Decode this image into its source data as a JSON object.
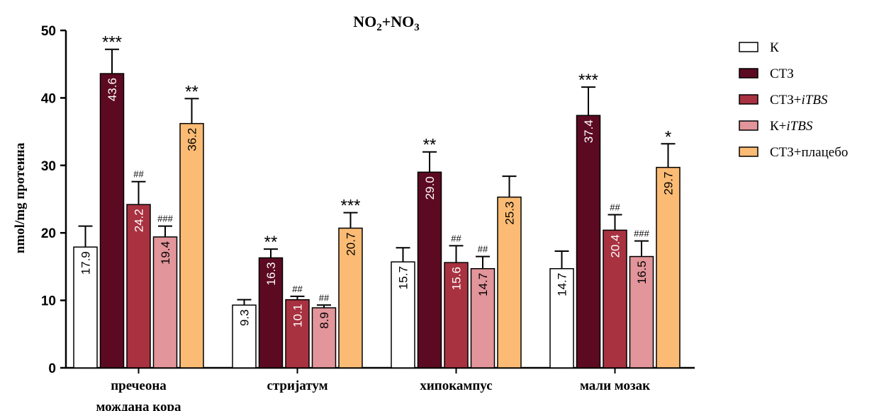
{
  "chart_data": {
    "type": "bar",
    "title_main": "NO",
    "title_sub1": "2",
    "title_mid": "+NO",
    "title_sub2": "3",
    "ylabel": "nmol/mg протеина",
    "ylim": [
      0,
      50
    ],
    "yticks": [
      0,
      10,
      20,
      30,
      40,
      50
    ],
    "categories": [
      [
        "пречеона",
        "мождана кора"
      ],
      [
        "стријатум"
      ],
      [
        "хипокампус"
      ],
      [
        "мали мозак"
      ]
    ],
    "series": [
      {
        "name_main": "К",
        "name_italic": "",
        "color": "#ffffff",
        "values": [
          17.9,
          9.3,
          15.7,
          14.7
        ],
        "errors": [
          21.0,
          10.1,
          17.8,
          17.3
        ],
        "labels": [
          "17.9",
          "9.3",
          "15.7",
          "14.7"
        ],
        "label_color": "#000000",
        "marks": [
          "",
          "",
          "",
          ""
        ]
      },
      {
        "name_main": "СТЗ",
        "name_italic": "",
        "color": "#5c0a22",
        "values": [
          43.6,
          16.3,
          29.0,
          37.4
        ],
        "errors": [
          47.2,
          17.6,
          32.0,
          41.6
        ],
        "labels": [
          "43.6",
          "16.3",
          "29.0",
          "37.4"
        ],
        "label_color": "#ffffff",
        "marks": [
          "***",
          "**",
          "**",
          "***"
        ]
      },
      {
        "name_main": "СТЗ+",
        "name_italic": "iTBS",
        "color": "#a83240",
        "values": [
          24.2,
          10.1,
          15.6,
          20.4
        ],
        "errors": [
          27.6,
          10.6,
          18.1,
          22.7
        ],
        "labels": [
          "24.2",
          "10.1",
          "15.6",
          "20.4"
        ],
        "label_color": "#ffffff",
        "marks": [
          "##",
          "##",
          "##",
          "##"
        ]
      },
      {
        "name_main": "К+",
        "name_italic": "iTBS",
        "color": "#e2959a",
        "values": [
          19.4,
          8.9,
          14.7,
          16.5
        ],
        "errors": [
          21.0,
          9.3,
          16.5,
          18.8
        ],
        "labels": [
          "19.4",
          "8.9",
          "14.7",
          "16.5"
        ],
        "label_color": "#000000",
        "marks": [
          "###",
          "##",
          "##",
          "###"
        ]
      },
      {
        "name_main": "СТЗ+плацебо",
        "name_italic": "",
        "color": "#fbbb74",
        "values": [
          36.2,
          20.7,
          25.3,
          29.7
        ],
        "errors": [
          39.9,
          23.0,
          28.4,
          33.2
        ],
        "labels": [
          "36.2",
          "20.7",
          "25.3",
          "29.7"
        ],
        "label_color": "#000000",
        "marks": [
          "**",
          "***",
          "",
          "*"
        ]
      }
    ],
    "grid": false,
    "legend": "right"
  }
}
